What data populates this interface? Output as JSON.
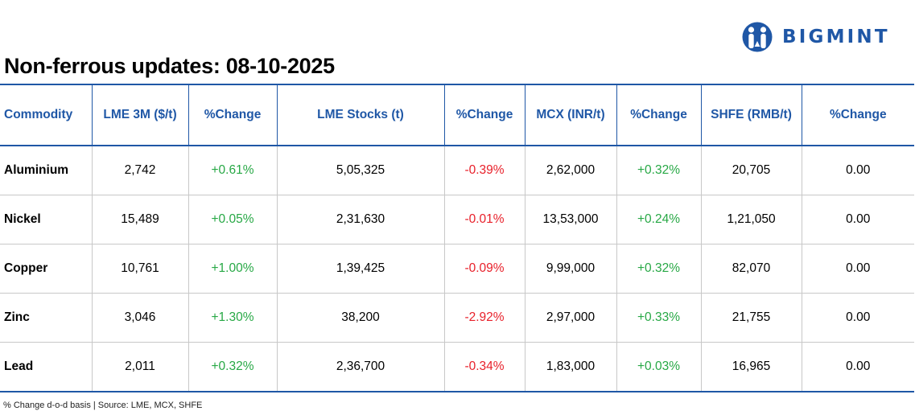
{
  "logo": {
    "text": "BIGMINT",
    "brand_color": "#1f57a6"
  },
  "title": "Non-ferrous updates: 08-10-2025",
  "table": {
    "headers": [
      "Commodity",
      "LME 3M ($/t)",
      "%Change",
      "LME Stocks (t)",
      "%Change",
      "MCX (INR/t)",
      "%Change",
      "SHFE (RMB/t)",
      "%Change"
    ],
    "rows": [
      [
        "Aluminium",
        "2,742",
        "+0.61%",
        "5,05,325",
        "-0.39%",
        "2,62,000",
        "+0.32%",
        "20,705",
        "0.00"
      ],
      [
        "Nickel",
        "15,489",
        "+0.05%",
        "2,31,630",
        "-0.01%",
        "13,53,000",
        "+0.24%",
        "1,21,050",
        "0.00"
      ],
      [
        "Copper",
        "10,761",
        "+1.00%",
        "1,39,425",
        "-0.09%",
        "9,99,000",
        "+0.32%",
        "82,070",
        "0.00"
      ],
      [
        "Zinc",
        "3,046",
        "+1.30%",
        "38,200",
        "-2.92%",
        "2,97,000",
        "+0.33%",
        "21,755",
        "0.00"
      ],
      [
        "Lead",
        "2,011",
        "+0.32%",
        "2,36,700",
        "-0.34%",
        "1,83,000",
        "+0.03%",
        "16,965",
        "0.00"
      ]
    ]
  },
  "colors": {
    "header_text": "#1f57a6",
    "positive": "#27a845",
    "negative": "#e8202a"
  },
  "footnote": "% Change d-o-d basis | Source: LME, MCX, SHFE"
}
